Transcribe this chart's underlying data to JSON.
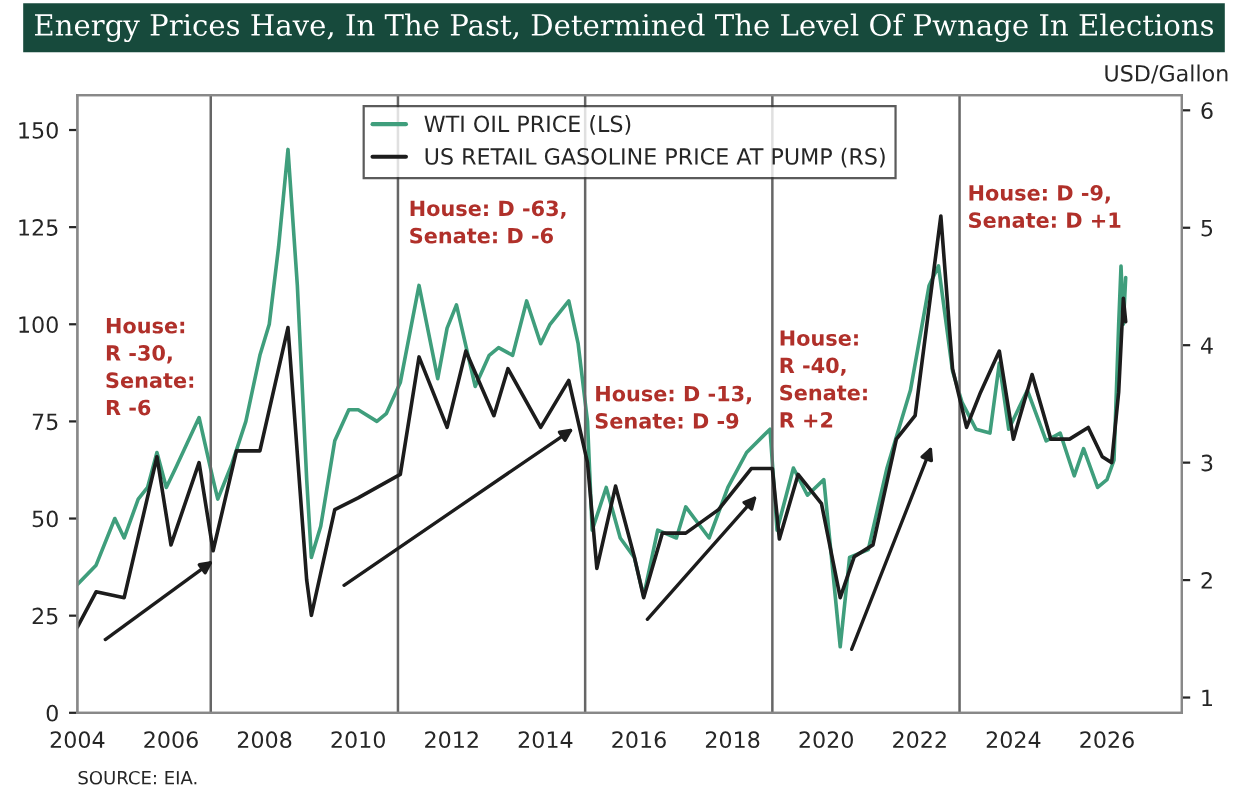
{
  "chart_data": {
    "type": "line",
    "title": "Energy Prices Have, In The Past, Determined The Level Of Pwnage In Elections",
    "y2label": "USD/Gallon",
    "series": [
      {
        "name": "WTI OIL PRICE (LS)",
        "color": "#3f9e7c",
        "x": [
          2004.0,
          2004.4,
          2004.8,
          2005.0,
          2005.3,
          2005.5,
          2005.7,
          2005.9,
          2006.1,
          2006.6,
          2006.9,
          2007.0,
          2007.3,
          2007.6,
          2007.9,
          2008.1,
          2008.3,
          2008.5,
          2008.7,
          2008.9,
          2009.0,
          2009.2,
          2009.5,
          2009.8,
          2010.0,
          2010.4,
          2010.6,
          2010.9,
          2011.3,
          2011.7,
          2011.9,
          2012.1,
          2012.5,
          2012.8,
          2013.0,
          2013.3,
          2013.6,
          2013.9,
          2014.1,
          2014.5,
          2014.7,
          2014.9,
          2015.0,
          2015.3,
          2015.6,
          2015.9,
          2016.1,
          2016.4,
          2016.8,
          2017.0,
          2017.5,
          2017.9,
          2018.3,
          2018.8,
          2018.95,
          2019.3,
          2019.6,
          2019.95,
          2020.3,
          2020.5,
          2020.9,
          2021.3,
          2021.8,
          2022.2,
          2022.4,
          2022.7,
          2022.9,
          2023.2,
          2023.5,
          2023.7,
          2023.9,
          2024.3,
          2024.7,
          2025.0,
          2025.3,
          2025.5,
          2025.8,
          2026.0,
          2026.15,
          2026.25,
          2026.3,
          2026.35,
          2026.4
        ],
        "values": [
          33,
          38,
          50,
          45,
          55,
          58,
          67,
          58,
          63,
          76,
          60,
          55,
          64,
          75,
          92,
          100,
          120,
          145,
          110,
          60,
          40,
          48,
          70,
          78,
          78,
          75,
          77,
          85,
          110,
          86,
          99,
          105,
          84,
          92,
          94,
          92,
          106,
          95,
          100,
          106,
          95,
          75,
          47,
          58,
          45,
          40,
          30,
          47,
          45,
          53,
          45,
          58,
          67,
          73,
          47,
          63,
          56,
          60,
          17,
          40,
          42,
          63,
          83,
          110,
          115,
          88,
          80,
          73,
          72,
          90,
          73,
          83,
          70,
          72,
          61,
          68,
          58,
          60,
          65,
          100,
          115,
          100,
          112
        ]
      },
      {
        "name": "US RETAIL GASOLINE PRICE AT PUMP (RS)",
        "color": "#1c1c1c",
        "axis": "y2",
        "x": [
          2004.0,
          2004.4,
          2005.0,
          2005.7,
          2006.0,
          2006.6,
          2006.9,
          2007.4,
          2007.9,
          2008.5,
          2008.9,
          2009.0,
          2009.5,
          2010.0,
          2010.9,
          2011.3,
          2011.9,
          2012.3,
          2012.9,
          2013.2,
          2013.9,
          2014.5,
          2014.9,
          2015.1,
          2015.5,
          2015.9,
          2016.1,
          2016.5,
          2017.0,
          2017.7,
          2018.4,
          2018.85,
          2019.0,
          2019.4,
          2019.9,
          2020.3,
          2020.6,
          2021.0,
          2021.5,
          2021.9,
          2022.45,
          2022.7,
          2023.0,
          2023.3,
          2023.7,
          2024.0,
          2024.4,
          2024.8,
          2025.2,
          2025.6,
          2025.9,
          2026.1,
          2026.25,
          2026.35,
          2026.4
        ],
        "values": [
          1.6,
          1.9,
          1.85,
          3.05,
          2.3,
          3.0,
          2.25,
          3.1,
          3.1,
          4.15,
          2.0,
          1.7,
          2.6,
          2.7,
          2.9,
          3.9,
          3.3,
          3.95,
          3.4,
          3.8,
          3.3,
          3.7,
          3.0,
          2.1,
          2.8,
          2.2,
          1.85,
          2.4,
          2.4,
          2.6,
          2.95,
          2.95,
          2.35,
          2.9,
          2.65,
          1.85,
          2.2,
          2.3,
          3.2,
          3.4,
          5.1,
          3.8,
          3.3,
          3.6,
          3.95,
          3.2,
          3.75,
          3.2,
          3.2,
          3.3,
          3.05,
          3.0,
          3.6,
          4.4,
          4.2
        ]
      }
    ],
    "xlim": [
      2004,
      2027.6
    ],
    "xticks": [
      2004,
      2006,
      2008,
      2010,
      2012,
      2014,
      2016,
      2018,
      2020,
      2022,
      2024,
      2026
    ],
    "ylim": [
      0,
      159
    ],
    "yticks": [
      0,
      25,
      50,
      75,
      100,
      125,
      150
    ],
    "y2lim": [
      0.87,
      6.13
    ],
    "y2ticks": [
      1,
      2,
      3,
      4,
      5,
      6
    ],
    "ref_lines": [
      {
        "axis": "x",
        "value": 2006.85,
        "color": "#666666"
      },
      {
        "axis": "x",
        "value": 2010.85,
        "color": "#666666"
      },
      {
        "axis": "x",
        "value": 2014.85,
        "color": "#666666"
      },
      {
        "axis": "x",
        "value": 2018.85,
        "color": "#666666"
      },
      {
        "axis": "x",
        "value": 2022.85,
        "color": "#666666"
      }
    ],
    "annotations": [
      "House:\nR -30,\nSenate:\nR -6",
      "House: D -63,\nSenate: D -6",
      "House: D -13,\nSenate: D -9",
      "House:\nR -40,\nSenate:\nR +2",
      "House: D -9,\nSenate: D +1",
      "SOURCE: EIA."
    ],
    "legend": "top",
    "grid": false
  }
}
